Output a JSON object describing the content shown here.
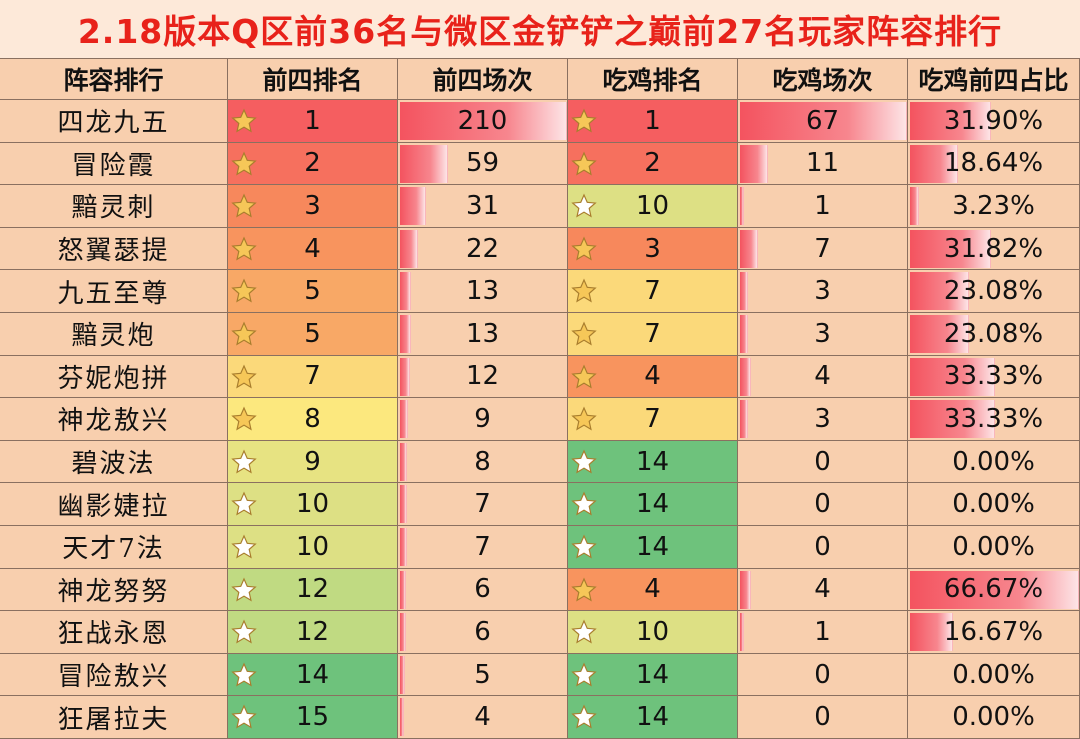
{
  "title": "2.18版本Q区前36名与微区金铲铲之巅前27名玩家阵容排行",
  "colors": {
    "title": "#e8221a",
    "sheet_bg": "#f8cfae",
    "bar": "#f4535f"
  },
  "chart_data": {
    "type": "table",
    "columns": [
      "阵容排行",
      "前四排名",
      "前四场次",
      "吃鸡排名",
      "吃鸡场次",
      "吃鸡前四占比"
    ],
    "rows": [
      {
        "name": "四龙九五",
        "top4_rank": "1",
        "top4_count": "210",
        "win_rank": "1",
        "win_count": "67",
        "win_ratio": "31.90%"
      },
      {
        "name": "冒险霞",
        "top4_rank": "2",
        "top4_count": "59",
        "win_rank": "2",
        "win_count": "11",
        "win_ratio": "18.64%"
      },
      {
        "name": "黯灵刺",
        "top4_rank": "3",
        "top4_count": "31",
        "win_rank": "10",
        "win_count": "1",
        "win_ratio": "3.23%"
      },
      {
        "name": "怒翼瑟提",
        "top4_rank": "4",
        "top4_count": "22",
        "win_rank": "3",
        "win_count": "7",
        "win_ratio": "31.82%"
      },
      {
        "name": "九五至尊",
        "top4_rank": "5",
        "top4_count": "13",
        "win_rank": "7",
        "win_count": "3",
        "win_ratio": "23.08%"
      },
      {
        "name": "黯灵炮",
        "top4_rank": "5",
        "top4_count": "13",
        "win_rank": "7",
        "win_count": "3",
        "win_ratio": "23.08%"
      },
      {
        "name": "芬妮炮拼",
        "top4_rank": "7",
        "top4_count": "12",
        "win_rank": "4",
        "win_count": "4",
        "win_ratio": "33.33%"
      },
      {
        "name": "神龙敖兴",
        "top4_rank": "8",
        "top4_count": "9",
        "win_rank": "7",
        "win_count": "3",
        "win_ratio": "33.33%"
      },
      {
        "name": "碧波法",
        "top4_rank": "9",
        "top4_count": "8",
        "win_rank": "14",
        "win_count": "0",
        "win_ratio": "0.00%"
      },
      {
        "name": "幽影婕拉",
        "top4_rank": "10",
        "top4_count": "7",
        "win_rank": "14",
        "win_count": "0",
        "win_ratio": "0.00%"
      },
      {
        "name": "天才7法",
        "top4_rank": "10",
        "top4_count": "7",
        "win_rank": "14",
        "win_count": "0",
        "win_ratio": "0.00%"
      },
      {
        "name": "神龙努努",
        "top4_rank": "12",
        "top4_count": "6",
        "win_rank": "4",
        "win_count": "4",
        "win_ratio": "66.67%"
      },
      {
        "name": "狂战永恩",
        "top4_rank": "12",
        "top4_count": "6",
        "win_rank": "10",
        "win_count": "1",
        "win_ratio": "16.67%"
      },
      {
        "name": "冒险敖兴",
        "top4_rank": "14",
        "top4_count": "5",
        "win_rank": "14",
        "win_count": "0",
        "win_ratio": "0.00%"
      },
      {
        "name": "狂屠拉夫",
        "top4_rank": "15",
        "top4_count": "4",
        "win_rank": "14",
        "win_count": "0",
        "win_ratio": "0.00%"
      }
    ]
  }
}
